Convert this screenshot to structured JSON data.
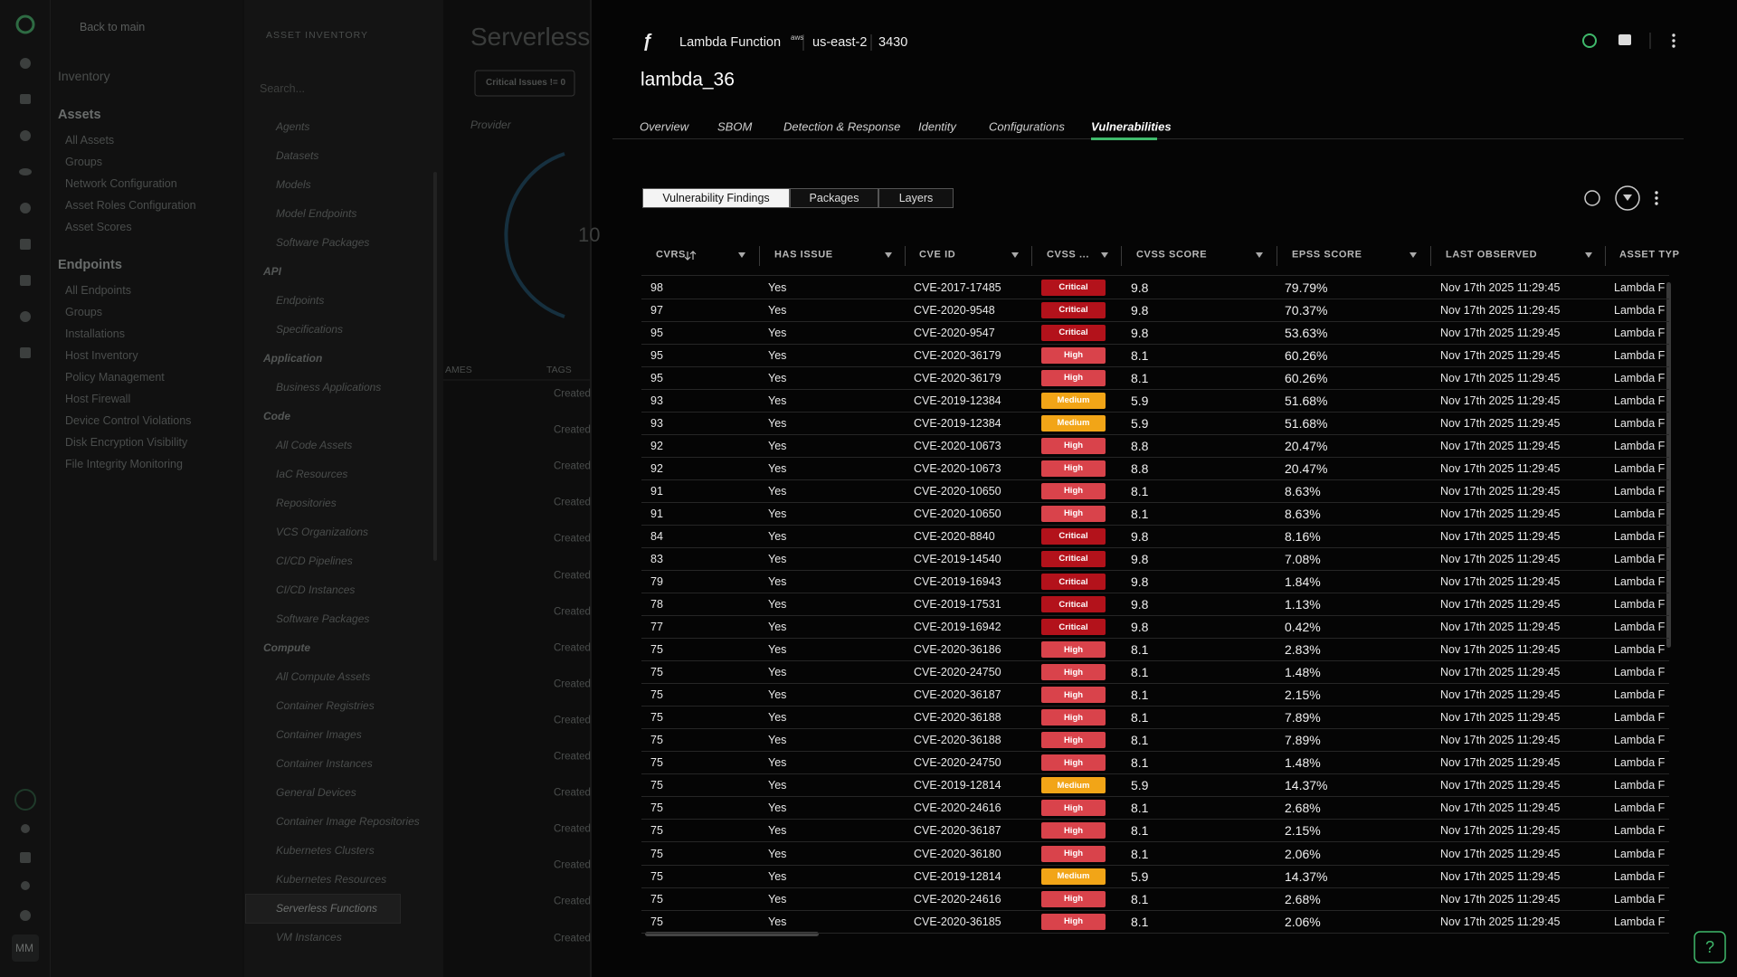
{
  "nav": {
    "back": "Back to main",
    "inventory": "Inventory",
    "avatar": "MM",
    "groups": [
      {
        "title": "Assets",
        "items": [
          "All Assets",
          "Groups",
          "Network Configuration",
          "Asset Roles Configuration",
          "Asset Scores"
        ]
      },
      {
        "title": "Endpoints",
        "items": [
          "All Endpoints",
          "Groups",
          "Installations",
          "Host Inventory",
          "Policy Management",
          "Host Firewall",
          "Device Control Violations",
          "Disk Encryption Visibility",
          "File Integrity Monitoring"
        ]
      }
    ]
  },
  "asset_inventory": {
    "title": "ASSET INVENTORY",
    "search_placeholder": "Search...",
    "sections": [
      {
        "items": [
          "Agents",
          "Datasets",
          "Models",
          "Model Endpoints",
          "Software Packages"
        ]
      },
      {
        "title": "API",
        "items": [
          "Endpoints",
          "Specifications"
        ]
      },
      {
        "title": "Application",
        "items": [
          "Business Applications"
        ]
      },
      {
        "title": "Code",
        "items": [
          "All Code Assets",
          "IaC Resources",
          "Repositories",
          "VCS Organizations",
          "CI/CD Pipelines",
          "CI/CD Instances",
          "Software Packages"
        ]
      },
      {
        "title": "Compute",
        "items": [
          "All Compute Assets",
          "Container Registries",
          "Container Images",
          "Container Instances",
          "General Devices",
          "Container Image Repositories",
          "Kubernetes Clusters",
          "Kubernetes Resources",
          "Serverless Functions",
          "VM Instances"
        ],
        "selected_item": 8
      }
    ]
  },
  "background_page": {
    "title": "Serverless",
    "filter": "Critical Issues != 0",
    "provider": "Provider",
    "donut_value": "10",
    "columns": [
      "AMES",
      "TAGS"
    ],
    "tags": [
      "Created",
      "Created",
      "Created",
      "Created",
      "Created",
      "Created",
      "Created",
      "Created",
      "Created",
      "Created",
      "Created",
      "Created",
      "Created",
      "Created",
      "Created",
      "Created"
    ]
  },
  "drawer": {
    "asset_type": "Lambda Function",
    "cloud": "aws",
    "region": "us-east-2",
    "account": "3430",
    "title": "lambda_36",
    "tabs": [
      "Overview",
      "SBOM",
      "Detection & Response",
      "Identity",
      "Configurations",
      "Vulnerabilities"
    ],
    "active_tab": 5,
    "segments": [
      "Vulnerability Findings",
      "Packages",
      "Layers"
    ],
    "active_segment": 0
  },
  "table": {
    "columns": [
      "CVRS",
      "HAS ISSUE",
      "CVE ID",
      "CVSS ...",
      "CVSS SCORE",
      "EPSS SCORE",
      "LAST OBSERVED",
      "ASSET TYP"
    ],
    "severity_colors": {
      "Critical": "#b3121b",
      "High": "#d9434b",
      "Medium": "#f2a517"
    },
    "rows": [
      [
        "98",
        "Yes",
        "CVE-2017-17485",
        "Critical",
        "9.8",
        "79.79%",
        "Nov 17th 2025 11:29:45",
        "Lambda F"
      ],
      [
        "97",
        "Yes",
        "CVE-2020-9548",
        "Critical",
        "9.8",
        "70.37%",
        "Nov 17th 2025 11:29:45",
        "Lambda F"
      ],
      [
        "95",
        "Yes",
        "CVE-2020-9547",
        "Critical",
        "9.8",
        "53.63%",
        "Nov 17th 2025 11:29:45",
        "Lambda F"
      ],
      [
        "95",
        "Yes",
        "CVE-2020-36179",
        "High",
        "8.1",
        "60.26%",
        "Nov 17th 2025 11:29:45",
        "Lambda F"
      ],
      [
        "95",
        "Yes",
        "CVE-2020-36179",
        "High",
        "8.1",
        "60.26%",
        "Nov 17th 2025 11:29:45",
        "Lambda F"
      ],
      [
        "93",
        "Yes",
        "CVE-2019-12384",
        "Medium",
        "5.9",
        "51.68%",
        "Nov 17th 2025 11:29:45",
        "Lambda F"
      ],
      [
        "93",
        "Yes",
        "CVE-2019-12384",
        "Medium",
        "5.9",
        "51.68%",
        "Nov 17th 2025 11:29:45",
        "Lambda F"
      ],
      [
        "92",
        "Yes",
        "CVE-2020-10673",
        "High",
        "8.8",
        "20.47%",
        "Nov 17th 2025 11:29:45",
        "Lambda F"
      ],
      [
        "92",
        "Yes",
        "CVE-2020-10673",
        "High",
        "8.8",
        "20.47%",
        "Nov 17th 2025 11:29:45",
        "Lambda F"
      ],
      [
        "91",
        "Yes",
        "CVE-2020-10650",
        "High",
        "8.1",
        "8.63%",
        "Nov 17th 2025 11:29:45",
        "Lambda F"
      ],
      [
        "91",
        "Yes",
        "CVE-2020-10650",
        "High",
        "8.1",
        "8.63%",
        "Nov 17th 2025 11:29:45",
        "Lambda F"
      ],
      [
        "84",
        "Yes",
        "CVE-2020-8840",
        "Critical",
        "9.8",
        "8.16%",
        "Nov 17th 2025 11:29:45",
        "Lambda F"
      ],
      [
        "83",
        "Yes",
        "CVE-2019-14540",
        "Critical",
        "9.8",
        "7.08%",
        "Nov 17th 2025 11:29:45",
        "Lambda F"
      ],
      [
        "79",
        "Yes",
        "CVE-2019-16943",
        "Critical",
        "9.8",
        "1.84%",
        "Nov 17th 2025 11:29:45",
        "Lambda F"
      ],
      [
        "78",
        "Yes",
        "CVE-2019-17531",
        "Critical",
        "9.8",
        "1.13%",
        "Nov 17th 2025 11:29:45",
        "Lambda F"
      ],
      [
        "77",
        "Yes",
        "CVE-2019-16942",
        "Critical",
        "9.8",
        "0.42%",
        "Nov 17th 2025 11:29:45",
        "Lambda F"
      ],
      [
        "75",
        "Yes",
        "CVE-2020-36186",
        "High",
        "8.1",
        "2.83%",
        "Nov 17th 2025 11:29:45",
        "Lambda F"
      ],
      [
        "75",
        "Yes",
        "CVE-2020-24750",
        "High",
        "8.1",
        "1.48%",
        "Nov 17th 2025 11:29:45",
        "Lambda F"
      ],
      [
        "75",
        "Yes",
        "CVE-2020-36187",
        "High",
        "8.1",
        "2.15%",
        "Nov 17th 2025 11:29:45",
        "Lambda F"
      ],
      [
        "75",
        "Yes",
        "CVE-2020-36188",
        "High",
        "8.1",
        "7.89%",
        "Nov 17th 2025 11:29:45",
        "Lambda F"
      ],
      [
        "75",
        "Yes",
        "CVE-2020-36188",
        "High",
        "8.1",
        "7.89%",
        "Nov 17th 2025 11:29:45",
        "Lambda F"
      ],
      [
        "75",
        "Yes",
        "CVE-2020-24750",
        "High",
        "8.1",
        "1.48%",
        "Nov 17th 2025 11:29:45",
        "Lambda F"
      ],
      [
        "75",
        "Yes",
        "CVE-2019-12814",
        "Medium",
        "5.9",
        "14.37%",
        "Nov 17th 2025 11:29:45",
        "Lambda F"
      ],
      [
        "75",
        "Yes",
        "CVE-2020-24616",
        "High",
        "8.1",
        "2.68%",
        "Nov 17th 2025 11:29:45",
        "Lambda F"
      ],
      [
        "75",
        "Yes",
        "CVE-2020-36187",
        "High",
        "8.1",
        "2.15%",
        "Nov 17th 2025 11:29:45",
        "Lambda F"
      ],
      [
        "75",
        "Yes",
        "CVE-2020-36180",
        "High",
        "8.1",
        "2.06%",
        "Nov 17th 2025 11:29:45",
        "Lambda F"
      ],
      [
        "75",
        "Yes",
        "CVE-2019-12814",
        "Medium",
        "5.9",
        "14.37%",
        "Nov 17th 2025 11:29:45",
        "Lambda F"
      ],
      [
        "75",
        "Yes",
        "CVE-2020-24616",
        "High",
        "8.1",
        "2.68%",
        "Nov 17th 2025 11:29:45",
        "Lambda F"
      ],
      [
        "75",
        "Yes",
        "CVE-2020-36185",
        "High",
        "8.1",
        "2.06%",
        "Nov 17th 2025 11:29:45",
        "Lambda F"
      ]
    ]
  }
}
